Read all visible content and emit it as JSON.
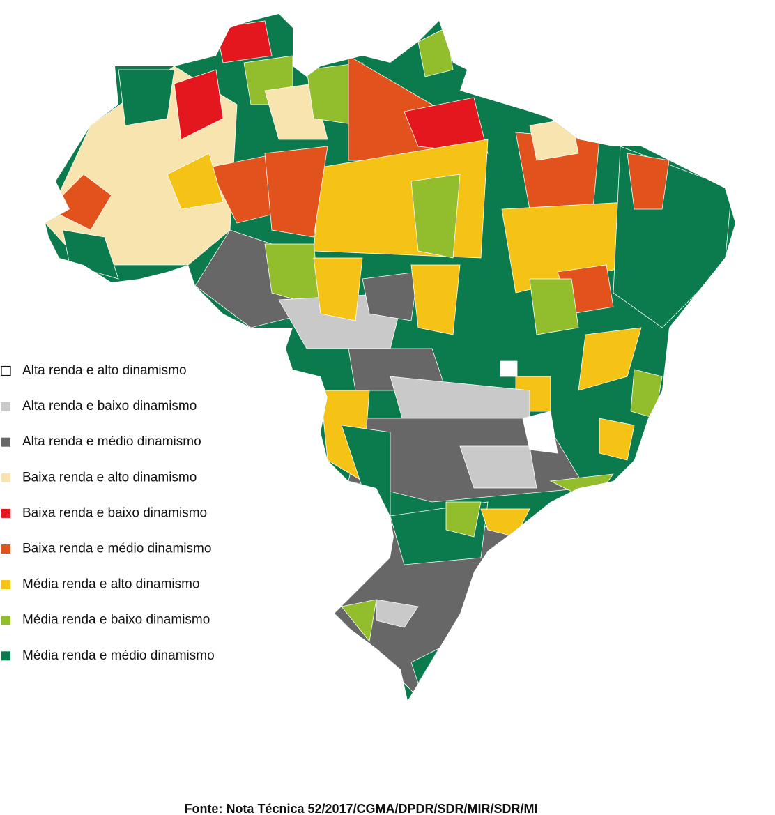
{
  "legend": {
    "items": [
      {
        "label": "Alta renda e alto dinamismo",
        "color": "#ffffff"
      },
      {
        "label": "Alta renda e baixo dinamismo",
        "color": "#c9c9c9"
      },
      {
        "label": "Alta renda e médio dinamismo",
        "color": "#676767"
      },
      {
        "label": "Baixa renda e alto dinamismo",
        "color": "#f8e4ae"
      },
      {
        "label": "Baixa renda e baixo dinamismo",
        "color": "#e3171d"
      },
      {
        "label": "Baixa renda e médio dinamismo",
        "color": "#e2521d"
      },
      {
        "label": "Média renda e alto dinamismo",
        "color": "#f5c316"
      },
      {
        "label": "Média renda e baixo dinamismo",
        "color": "#92bd2c"
      },
      {
        "label": "Média renda e médio dinamismo",
        "color": "#0b7a4c"
      }
    ]
  },
  "source": "Fonte: Nota Técnica 52/2017/CGMA/DPDR/SDR/MIR/SDR/MI"
}
